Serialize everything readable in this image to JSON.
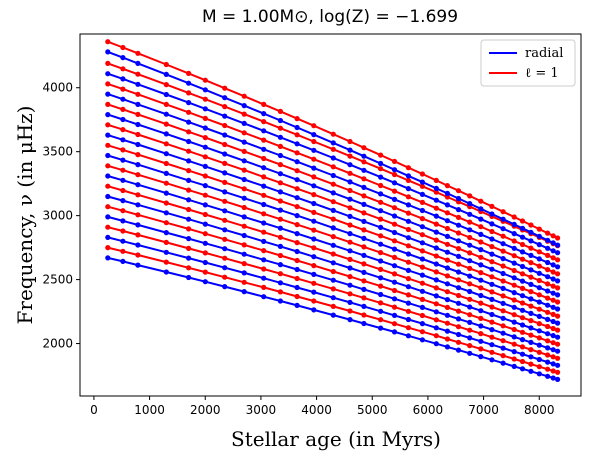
{
  "chart_data": {
    "type": "line",
    "title": "M = 1.00M⊙, log(Z) = −1.699",
    "xlabel": "Stellar age (in Myrs)",
    "ylabel": "Frequency, ν (in μHz)",
    "xlim": [
      -250,
      8750
    ],
    "ylim": [
      1590,
      4420
    ],
    "x_ticks": [
      0,
      1000,
      2000,
      3000,
      4000,
      5000,
      6000,
      7000,
      8000
    ],
    "y_ticks": [
      2000,
      2500,
      3000,
      3500,
      4000
    ],
    "legend": {
      "placement": "top-right",
      "entries": [
        {
          "label": "radial",
          "color": "#0000ff"
        },
        {
          "label": "ℓ = 1",
          "color": "#ff0000"
        }
      ]
    },
    "ages": [
      250,
      520,
      790,
      1300,
      1700,
      2000,
      2350,
      2700,
      3050,
      3350,
      3650,
      3950,
      4300,
      4600,
      4850,
      5150,
      5400,
      5650,
      5900,
      6150,
      6350,
      6550,
      6750,
      6950,
      7150,
      7350,
      7550,
      7700,
      7850,
      8000,
      8150,
      8250,
      8330
    ],
    "series": [
      {
        "type": "radial",
        "color": "#0000ff",
        "start": 2670,
        "end": 1720
      },
      {
        "type": "l1",
        "color": "#ff0000",
        "start": 2750,
        "end": 1775
      },
      {
        "type": "radial",
        "color": "#0000ff",
        "start": 2830,
        "end": 1830
      },
      {
        "type": "l1",
        "color": "#ff0000",
        "start": 2910,
        "end": 1885
      },
      {
        "type": "radial",
        "color": "#0000ff",
        "start": 2990,
        "end": 1940
      },
      {
        "type": "l1",
        "color": "#ff0000",
        "start": 3070,
        "end": 1995
      },
      {
        "type": "radial",
        "color": "#0000ff",
        "start": 3150,
        "end": 2050
      },
      {
        "type": "l1",
        "color": "#ff0000",
        "start": 3230,
        "end": 2105
      },
      {
        "type": "radial",
        "color": "#0000ff",
        "start": 3310,
        "end": 2160
      },
      {
        "type": "l1",
        "color": "#ff0000",
        "start": 3390,
        "end": 2215
      },
      {
        "type": "radial",
        "color": "#0000ff",
        "start": 3470,
        "end": 2270
      },
      {
        "type": "l1",
        "color": "#ff0000",
        "start": 3550,
        "end": 2325
      },
      {
        "type": "radial",
        "color": "#0000ff",
        "start": 3630,
        "end": 2380
      },
      {
        "type": "l1",
        "color": "#ff0000",
        "start": 3710,
        "end": 2435
      },
      {
        "type": "radial",
        "color": "#0000ff",
        "start": 3790,
        "end": 2490
      },
      {
        "type": "l1",
        "color": "#ff0000",
        "start": 3870,
        "end": 2545
      },
      {
        "type": "radial",
        "color": "#0000ff",
        "start": 3950,
        "end": 2600
      },
      {
        "type": "l1",
        "color": "#ff0000",
        "start": 4030,
        "end": 2655
      },
      {
        "type": "radial",
        "color": "#0000ff",
        "start": 4110,
        "end": 2710
      },
      {
        "type": "l1",
        "color": "#ff0000",
        "start": 4190,
        "end": 2765
      },
      {
        "type": "radial",
        "color": "#0000ff",
        "start": 4280,
        "end": 2770
      },
      {
        "type": "l1",
        "color": "#ff0000",
        "start": 4360,
        "end": 2825
      }
    ]
  }
}
